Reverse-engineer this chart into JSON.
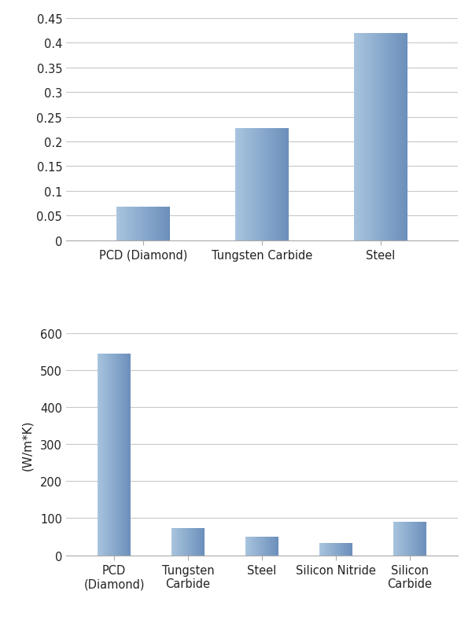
{
  "chart1": {
    "categories": [
      "PCD (Diamond)",
      "Tungsten Carbide",
      "Steel"
    ],
    "values": [
      0.067,
      0.227,
      0.42
    ],
    "ylim": [
      0,
      0.45
    ],
    "yticks": [
      0,
      0.05,
      0.1,
      0.15,
      0.2,
      0.25,
      0.3,
      0.35,
      0.4,
      0.45
    ],
    "ylabel": ""
  },
  "chart2": {
    "categories": [
      "PCD\n(Diamond)",
      "Tungsten\nCarbide",
      "Steel",
      "Silicon Nitride",
      "Silicon\nCarbide"
    ],
    "values": [
      545,
      73,
      50,
      33,
      90
    ],
    "ylim": [
      0,
      600
    ],
    "yticks": [
      0,
      100,
      200,
      300,
      400,
      500,
      600
    ],
    "ylabel": "(W/m*K)"
  },
  "bg_color": "#ffffff",
  "bar_color_left": "#a8c4de",
  "bar_color_right": "#6b8fbb",
  "bar_color_mid": "#8daece",
  "grid_color": "#c8c8c8",
  "tick_label_fontsize": 10.5,
  "axis_label_fontsize": 11,
  "bar_width": 0.45
}
